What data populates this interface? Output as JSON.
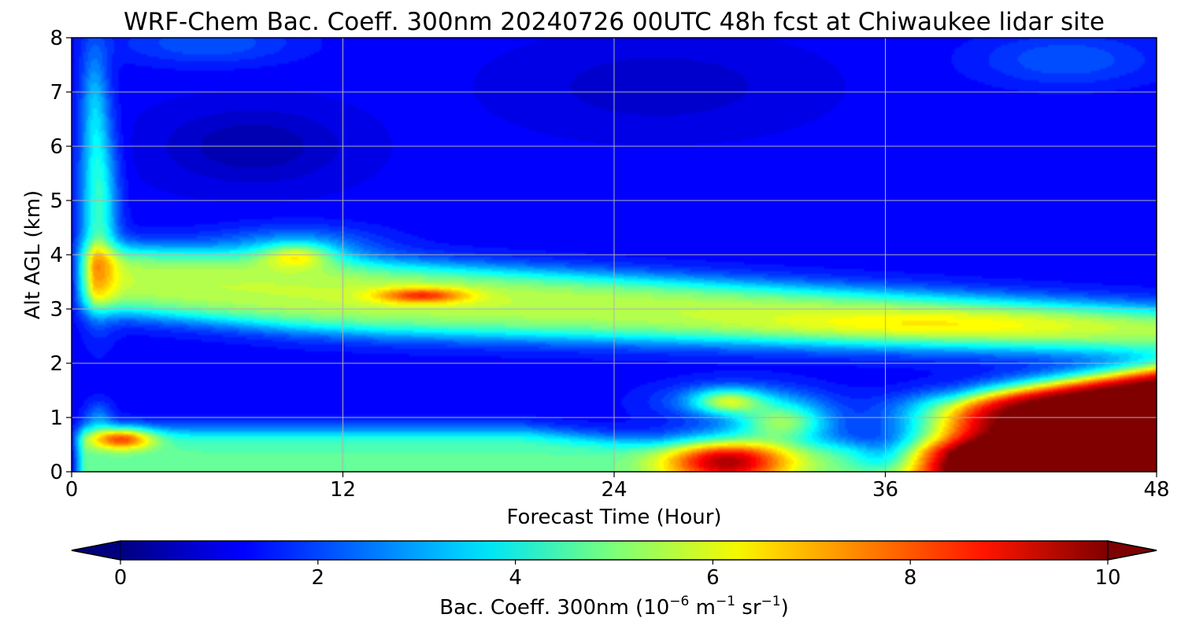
{
  "chart_data": {
    "type": "heatmap",
    "title": "WRF-Chem Bac. Coeff. 300nm  20240726 00UTC 48h fcst at Chiwaukee lidar site",
    "xlabel": "Forecast Time (Hour)",
    "ylabel": "Alt AGL (km)",
    "xlim": [
      0,
      48
    ],
    "ylim": [
      0,
      8
    ],
    "xticks": [
      "0",
      "12",
      "24",
      "36",
      "48"
    ],
    "yticks": [
      "0",
      "1",
      "2",
      "3",
      "4",
      "5",
      "6",
      "7",
      "8"
    ],
    "grid": true,
    "colormap": "jet",
    "colorbar": {
      "orientation": "horizontal",
      "placement": "bottom",
      "extend": "both",
      "range": [
        0,
        10
      ],
      "ticks": [
        "0",
        "2",
        "4",
        "6",
        "8",
        "10"
      ],
      "label_main": "Bac. Coeff. 300nm  (10",
      "label_exp1": "−6",
      "label_mid": " m",
      "label_exp2": "−1",
      "label_mid2": " sr",
      "label_exp3": "−1",
      "label_end": ")"
    },
    "features": [
      {
        "name": "surface aerosol layer",
        "x_range": [
          0.5,
          48
        ],
        "y_range": [
          0,
          1.2
        ],
        "value_approx": 4.5
      },
      {
        "name": "near-surface maximum early",
        "x": 2,
        "y": 0.6,
        "value_approx": 8.5
      },
      {
        "name": "convective/boundary maximum",
        "x": 29,
        "y": 0.3,
        "value_approx": 8.8
      },
      {
        "name": "saturated near-surface layer late",
        "x_range": [
          40,
          48
        ],
        "y_range": [
          0,
          1.8
        ],
        "value_approx": 10
      },
      {
        "name": "elevated smoke layer",
        "x_range": [
          1,
          48
        ],
        "y_range": [
          2.2,
          4.3
        ],
        "value_approx": 5.5
      },
      {
        "name": "elevated layer local max",
        "x": 10,
        "y": 4.0,
        "value_approx": 7.0
      },
      {
        "name": "elevated layer local max",
        "x": 15.5,
        "y": 3.25,
        "value_approx": 7.3
      },
      {
        "name": "upper-layer minimum",
        "x": 8,
        "y": 6.0,
        "value_approx": 0.3
      }
    ]
  }
}
